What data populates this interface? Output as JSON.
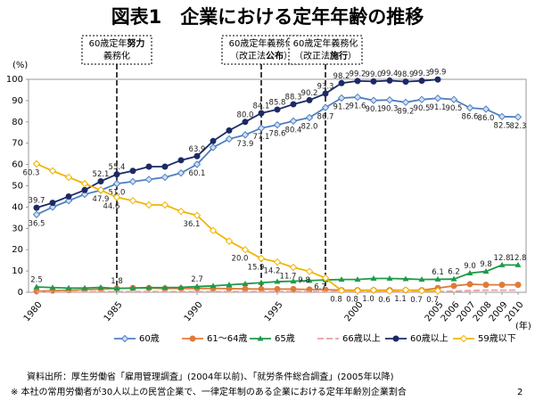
{
  "chart_data": {
    "type": "line",
    "title": "図表1　企業における定年年齢の推移",
    "y_unit": "(%)",
    "x_unit": "(年)",
    "x": [
      1980,
      1981,
      1982,
      1983,
      1984,
      1985,
      1986,
      1987,
      1988,
      1989,
      1990,
      1991,
      1992,
      1993,
      1994,
      1995,
      1996,
      1997,
      1998,
      1999,
      2000,
      2001,
      2002,
      2003,
      2004,
      2005,
      2006,
      2007,
      2008,
      2009,
      2010
    ],
    "xlim": [
      1979.5,
      2010.5
    ],
    "xticks": [
      1980,
      1985,
      1990,
      1995,
      2000,
      2005,
      2006,
      2007,
      2008,
      2009,
      2010
    ],
    "ylim": [
      0,
      100
    ],
    "yticks": [
      0,
      10,
      20,
      30,
      40,
      50,
      60,
      70,
      80,
      90,
      100
    ],
    "grid": false,
    "legend": "bottom",
    "series": [
      {
        "name": "60歳",
        "color": "#4f7fbf",
        "marker": "diamond",
        "values": [
          36.5,
          40,
          43,
          46,
          47.9,
          51.0,
          52,
          53,
          54,
          56,
          60.1,
          68,
          72,
          73.9,
          77.1,
          78.6,
          80.4,
          82.0,
          86.7,
          91.2,
          91.6,
          90.1,
          90.3,
          89.2,
          90.5,
          91.1,
          90.5,
          86.6,
          86.0,
          82.5,
          82.3
        ],
        "value_labels": [
          "36.5",
          null,
          null,
          null,
          "47.9",
          "51.0",
          null,
          null,
          null,
          null,
          "60.1",
          null,
          null,
          "73.9",
          "77.1",
          "78.6",
          "80.4",
          "82.0",
          "86.7",
          "91.2",
          "91.6",
          "90.1",
          "90.3",
          "89.2",
          "90.5",
          "91.1",
          "90.5",
          "86.6",
          "86.0",
          "82.5",
          "82.3"
        ]
      },
      {
        "name": "61～64歳",
        "color": "#e07b39",
        "marker": "circle",
        "values": [
          0.5,
          0.8,
          1,
          1.2,
          1.5,
          1.8,
          2,
          2,
          1.8,
          1.8,
          1.8,
          1.8,
          1.7,
          1.6,
          1.5,
          1.5,
          1.5,
          1.3,
          1.2,
          1,
          1,
          1,
          1,
          1,
          1,
          2,
          3,
          3.8,
          3.5,
          3.5,
          3.5
        ]
      },
      {
        "name": "65歳",
        "color": "#1f9a4a",
        "marker": "triangle",
        "values": [
          2.5,
          2.2,
          2,
          2,
          2.3,
          1.8,
          2,
          2.2,
          2.2,
          2.3,
          2.7,
          3,
          3.5,
          4,
          4.5,
          5,
          5.2,
          5.5,
          5.8,
          6,
          6,
          6.5,
          6.5,
          6.3,
          6,
          6.1,
          6.2,
          9.0,
          9.8,
          12.8,
          12.8
        ],
        "value_labels": [
          "2.5",
          null,
          null,
          null,
          null,
          "1.8",
          null,
          null,
          null,
          null,
          "2.7",
          null,
          null,
          null,
          null,
          null,
          null,
          null,
          null,
          null,
          null,
          null,
          null,
          null,
          null,
          "6.1",
          "6.2",
          "9.0",
          "9.8",
          "12.8",
          "12.8"
        ]
      },
      {
        "name": "66歳以上",
        "color": "#e8a0a0",
        "marker": "none",
        "dashed": true,
        "values": [
          0.2,
          0.2,
          0.2,
          0.2,
          0.3,
          0.3,
          0.3,
          0.3,
          0.3,
          0.3,
          0.3,
          0.3,
          0.3,
          0.3,
          0.3,
          0.3,
          0.3,
          0.3,
          0.3,
          0.2,
          0.2,
          0.2,
          0.2,
          0.2,
          0.2,
          0.3,
          0.5,
          0.8,
          1,
          1,
          1
        ]
      },
      {
        "name": "60歳以上",
        "color": "#1b2a66",
        "marker": "circle",
        "values": [
          39.7,
          42,
          45,
          48,
          52.1,
          55.4,
          57,
          59,
          59,
          62,
          63.9,
          71,
          76,
          80.0,
          84.1,
          85.8,
          88.3,
          90.2,
          93.3,
          98.2,
          99.2,
          99.0,
          99.4,
          98.9,
          99.3,
          99.9,
          null,
          null,
          null,
          null,
          null
        ],
        "value_labels": [
          "39.7",
          null,
          null,
          null,
          "52.1",
          "55.4",
          null,
          null,
          null,
          null,
          "63.9",
          null,
          null,
          "80.0",
          "84.1",
          "85.8",
          "88.3",
          "90.2",
          "93.3",
          "98.2",
          "99.2",
          "99.0",
          "99.4",
          "98.9",
          "99.3",
          "99.9",
          null,
          null,
          null,
          null,
          null
        ]
      },
      {
        "name": "59歳以下",
        "color": "#f0b400",
        "marker": "diamond-open",
        "values": [
          60.3,
          57,
          54,
          51,
          48,
          44.6,
          43,
          41,
          41,
          38,
          36.1,
          29,
          24,
          20.0,
          15.9,
          14.2,
          11.7,
          9.8,
          6.7,
          0.8,
          0.8,
          1.0,
          0.6,
          1.1,
          0.7,
          0.7,
          null,
          null,
          null,
          null,
          null
        ],
        "value_labels": [
          "60.3",
          null,
          null,
          null,
          null,
          "44.6",
          null,
          null,
          null,
          null,
          "36.1",
          null,
          null,
          "20.0",
          "15.9",
          "14.2",
          "11.7",
          "9.8",
          "6.7",
          "0.8",
          "0.8",
          "1.0",
          "0.6",
          "1.1",
          "0.7",
          "0.7",
          null,
          null,
          null,
          null,
          null
        ]
      }
    ],
    "annotations": [
      {
        "x": 1985,
        "lines": [
          [
            "60歳定年",
            "努力"
          ],
          [
            "義務化"
          ]
        ]
      },
      {
        "x": 1994,
        "lines": [
          [
            "60歳定年義務化"
          ],
          [
            "（改正法",
            "公布",
            "）"
          ]
        ]
      },
      {
        "x": 1998,
        "lines": [
          [
            "60歳定年義務化"
          ],
          [
            "（改正法",
            "施行",
            "）"
          ]
        ]
      }
    ],
    "source": "資料出所：厚生労働省「雇用管理調査」(2004年以前)、「就労条件総合調査」(2005年以降)",
    "note": "※ 本社の常用労働者が30人以上の民営企業で、一律定年制のある企業における定年年齢別企業割合",
    "page": "2"
  }
}
